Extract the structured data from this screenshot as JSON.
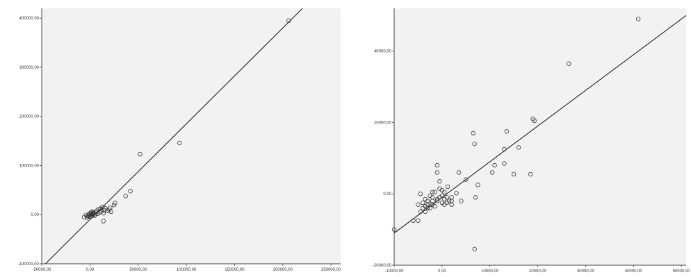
{
  "chart_data": [
    {
      "type": "scatter",
      "title": "",
      "xlabel": "",
      "ylabel": "",
      "xlim": [
        -50000,
        260000
      ],
      "ylim": [
        -100000,
        420000
      ],
      "x_ticks": [
        -50000,
        0,
        50000,
        100000,
        150000,
        200000,
        250000
      ],
      "x_tick_labels": [
        "-50000,00",
        "0,00",
        "50000,00",
        "100000,00",
        "150000,00",
        "200000,00",
        "250000,00"
      ],
      "y_ticks": [
        -100000,
        0,
        100000,
        200000,
        300000,
        400000
      ],
      "y_tick_labels": [
        "-100000,00",
        "0,00",
        "100000,00",
        "200000,00",
        "300000,00",
        "400000,00"
      ],
      "grid": false,
      "background": "#f2f2f2",
      "fit_line": {
        "slope": 1.95,
        "intercept": -10000
      },
      "points": [
        [
          -6000,
          -5000
        ],
        [
          -3000,
          -6000
        ],
        [
          -1500,
          -2000
        ],
        [
          0,
          0
        ],
        [
          1000,
          -3000
        ],
        [
          2000,
          -1000
        ],
        [
          3000,
          1000
        ],
        [
          -2000,
          -3000
        ],
        [
          500,
          -4000
        ],
        [
          1500,
          2000
        ],
        [
          2500,
          -2000
        ],
        [
          4000,
          3000
        ],
        [
          5000,
          1000
        ],
        [
          6000,
          4000
        ],
        [
          -4000,
          -1000
        ],
        [
          3500,
          5000
        ],
        [
          7000,
          8000
        ],
        [
          8000,
          2000
        ],
        [
          10000,
          5000
        ],
        [
          11000,
          12000
        ],
        [
          13000,
          16000
        ],
        [
          14000,
          3000
        ],
        [
          15000,
          9000
        ],
        [
          16000,
          13000
        ],
        [
          18000,
          8000
        ],
        [
          20000,
          10000
        ],
        [
          21000,
          14000
        ],
        [
          22000,
          6000
        ],
        [
          25000,
          20000
        ],
        [
          26000,
          24000
        ],
        [
          14000,
          -13000
        ],
        [
          37000,
          38000
        ],
        [
          42000,
          48000
        ],
        [
          52000,
          123000
        ],
        [
          93000,
          146000
        ],
        [
          206000,
          395000
        ],
        [
          -1000,
          2000
        ],
        [
          2000,
          6000
        ],
        [
          5000,
          -2000
        ],
        [
          9000,
          11000
        ],
        [
          12000,
          7000
        ],
        [
          1000,
          4000
        ]
      ]
    },
    {
      "type": "scatter",
      "title": "",
      "xlabel": "",
      "ylabel": "",
      "xlim": [
        -10000,
        51000
      ],
      "ylim": [
        -20000,
        52000
      ],
      "x_ticks": [
        -10000,
        0,
        10000,
        20000,
        30000,
        40000,
        50000
      ],
      "x_tick_labels": [
        "-10000,00",
        "0,00",
        "10000,00",
        "20000,00",
        "30000,00",
        "40000,00",
        "50000,00"
      ],
      "y_ticks": [
        -20000,
        0,
        20000,
        40000
      ],
      "y_tick_labels": [
        "-20000,00",
        "0,00",
        "20000,00",
        "40000,00"
      ],
      "grid": false,
      "background": "#f2f2f2",
      "fit_line": {
        "slope": 1.0,
        "intercept": -1000
      },
      "points": [
        [
          -10000,
          -10000
        ],
        [
          -5000,
          -7500
        ],
        [
          -4500,
          -5000
        ],
        [
          -4000,
          -4000
        ],
        [
          -3500,
          -3500
        ],
        [
          -3000,
          -3000
        ],
        [
          -2500,
          -2800
        ],
        [
          -2000,
          -2000
        ],
        [
          -1500,
          -3500
        ],
        [
          -1000,
          -1500
        ],
        [
          -500,
          -1000
        ],
        [
          0,
          -500
        ],
        [
          500,
          -3000
        ],
        [
          1000,
          -2500
        ],
        [
          1500,
          -2000
        ],
        [
          2000,
          -1000
        ],
        [
          -4000,
          -2500
        ],
        [
          -3000,
          -4000
        ],
        [
          -2000,
          -3000
        ],
        [
          -1000,
          -2000
        ],
        [
          0,
          -2500
        ],
        [
          1000,
          -1000
        ],
        [
          2000,
          -3000
        ],
        [
          -5000,
          -3000
        ],
        [
          -3500,
          -1500
        ],
        [
          -2500,
          -500
        ],
        [
          -1500,
          500
        ],
        [
          -500,
          1500
        ],
        [
          0,
          1000
        ],
        [
          500,
          -1500
        ],
        [
          -4500,
          0
        ],
        [
          -3000,
          -2000
        ],
        [
          -2000,
          500
        ],
        [
          3000,
          200
        ],
        [
          4000,
          -2000
        ],
        [
          5000,
          4000
        ],
        [
          -1000,
          8000
        ],
        [
          -1000,
          6000
        ],
        [
          -500,
          3500
        ],
        [
          6500,
          17000
        ],
        [
          6800,
          14000
        ],
        [
          3500,
          6000
        ],
        [
          7000,
          -1000
        ],
        [
          7500,
          2500
        ],
        [
          -3500,
          -5000
        ],
        [
          -6000,
          -7500
        ],
        [
          -2500,
          -4000
        ],
        [
          1200,
          2000
        ],
        [
          10500,
          6000
        ],
        [
          11000,
          8000
        ],
        [
          13000,
          8500
        ],
        [
          13000,
          12500
        ],
        [
          13500,
          17500
        ],
        [
          15000,
          5500
        ],
        [
          16000,
          13000
        ],
        [
          18500,
          5500
        ],
        [
          19000,
          21000
        ],
        [
          19300,
          20500
        ],
        [
          26500,
          36500
        ],
        [
          41000,
          49000
        ],
        [
          6800,
          -15500
        ],
        [
          2000,
          -2000
        ],
        [
          -2000,
          -1000
        ],
        [
          500,
          500
        ]
      ]
    }
  ]
}
